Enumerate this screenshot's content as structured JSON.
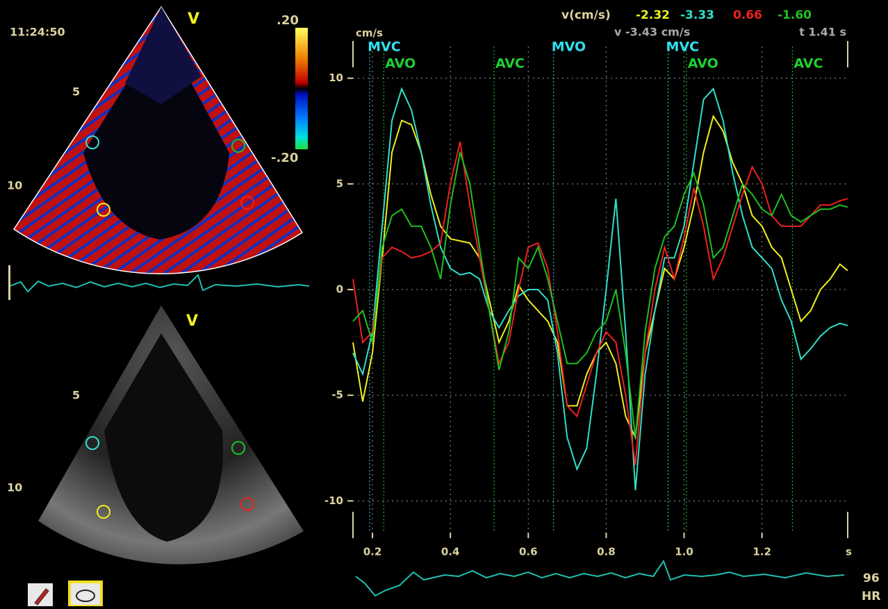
{
  "left": {
    "time": "11:24:50",
    "top_view": "V",
    "bottom_view": "V",
    "scale_max": ".20",
    "scale_min": "-.20",
    "top_depth": [
      "5",
      "10"
    ],
    "bottom_depth": [
      "5",
      "10"
    ]
  },
  "readout": {
    "label": "v(cm/s)",
    "values": [
      "-2.32",
      "-3.33",
      "0.66",
      "-1.60"
    ],
    "cursor_v": "v -3.43 cm/s",
    "cursor_t": "t 1.41 s"
  },
  "heart_rate": {
    "value": "96",
    "label": "HR"
  },
  "chart_data": {
    "type": "line",
    "y_label": "cm/s",
    "x_label": "s",
    "xlim": [
      0.15,
      1.42
    ],
    "ylim": [
      -11.5,
      11.5
    ],
    "xticks": [
      0.2,
      0.4,
      0.6,
      0.8,
      {
        "value": 1,
        "label": "1.0"
      },
      1.2
    ],
    "yticks": [
      10,
      5,
      0,
      -5,
      -10
    ],
    "grid": true,
    "events": [
      {
        "label": "MVC",
        "x": 0.193,
        "color": "#30e0f0"
      },
      {
        "label": "AVO",
        "x": 0.229,
        "color": "#20d030"
      },
      {
        "label": "AVC",
        "x": 0.512,
        "color": "#20d030"
      },
      {
        "label": "MVO",
        "x": 0.665,
        "color": "#30e0f0"
      },
      {
        "label": "MVC",
        "x": 0.959,
        "color": "#30e0f0"
      },
      {
        "label": "AVO",
        "x": 1.006,
        "color": "#20d030"
      },
      {
        "label": "AVC",
        "x": 1.278,
        "color": "#20d030"
      }
    ],
    "x": [
      0.15,
      0.175,
      0.2,
      0.225,
      0.25,
      0.275,
      0.3,
      0.325,
      0.35,
      0.375,
      0.4,
      0.425,
      0.45,
      0.475,
      0.5,
      0.525,
      0.55,
      0.575,
      0.6,
      0.625,
      0.65,
      0.675,
      0.7,
      0.725,
      0.75,
      0.775,
      0.8,
      0.825,
      0.85,
      0.875,
      0.9,
      0.925,
      0.95,
      0.975,
      1.0,
      1.025,
      1.05,
      1.075,
      1.1,
      1.125,
      1.15,
      1.175,
      1.2,
      1.225,
      1.25,
      1.275,
      1.3,
      1.325,
      1.35,
      1.375,
      1.4,
      1.42
    ],
    "series": [
      {
        "color": "#f0f020",
        "values": [
          -2.5,
          -5.3,
          -3,
          1.5,
          6.5,
          8,
          7.8,
          6.5,
          4.5,
          3,
          2.4,
          2.3,
          2.2,
          1.5,
          -0.5,
          -2.5,
          -1.5,
          0.2,
          -0.5,
          -1,
          -1.5,
          -2.5,
          -5.5,
          -5.5,
          -4,
          -3,
          -2.5,
          -3.5,
          -6,
          -7,
          -3,
          -1,
          1,
          0.5,
          2,
          4,
          6.5,
          8.2,
          7.5,
          6,
          5,
          3.5,
          3,
          2,
          1.5,
          0,
          -1.5,
          -1,
          0,
          0.5,
          1.2,
          0.9
        ]
      },
      {
        "color": "#30e0c8",
        "values": [
          -3,
          -4,
          -2,
          3,
          8,
          9.5,
          8.5,
          6.5,
          4,
          2,
          1,
          0.7,
          0.8,
          0.5,
          -1,
          -1.8,
          -1,
          -0.3,
          0,
          0,
          -0.5,
          -3,
          -7,
          -8.5,
          -7.5,
          -4,
          0,
          4.3,
          -2,
          -9.5,
          -4,
          -1,
          1.5,
          1.5,
          3,
          6,
          9,
          9.5,
          8,
          5.5,
          3.5,
          2,
          1.5,
          1,
          -0.5,
          -1.5,
          -3.3,
          -2.8,
          -2.2,
          -1.8,
          -1.6,
          -1.7
        ]
      },
      {
        "color": "#f02020",
        "values": [
          0.5,
          -2.5,
          -2,
          1.5,
          2,
          1.8,
          1.5,
          1.6,
          1.8,
          2.2,
          5,
          7,
          4,
          1.5,
          -1,
          -3.5,
          -2.5,
          0,
          2,
          2.2,
          1,
          -2,
          -5.5,
          -6,
          -4.5,
          -3,
          -2,
          -2.5,
          -5,
          -8.3,
          -3,
          0,
          2,
          0.5,
          2.5,
          4.8,
          3,
          0.5,
          1.5,
          3,
          4.5,
          5.8,
          5,
          3.5,
          3,
          3,
          3,
          3.5,
          4,
          4,
          4.2,
          4.3
        ]
      },
      {
        "color": "#20c020",
        "values": [
          -1.5,
          -1,
          -2.5,
          2,
          3.5,
          3.8,
          3,
          3,
          2,
          0.5,
          4,
          6.5,
          5,
          2,
          -1,
          -3.8,
          -2,
          1.5,
          1,
          2,
          0.5,
          -1.5,
          -3.5,
          -3.5,
          -3,
          -2,
          -1.5,
          0,
          -3,
          -7,
          -2,
          1,
          2.5,
          3,
          4.5,
          5.5,
          4,
          1.5,
          2,
          3.5,
          5,
          4.5,
          3.8,
          3.5,
          4.5,
          3.5,
          3.2,
          3.5,
          3.8,
          3.8,
          4,
          3.9
        ]
      }
    ]
  }
}
